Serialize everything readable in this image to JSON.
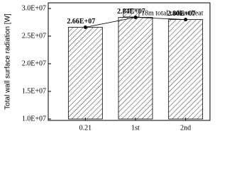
{
  "chart_data": {
    "type": "bar",
    "ylabel": "Total wall surface radiation [W]",
    "categories": [
      "0.21",
      "1st",
      "2nd"
    ],
    "series": [
      {
        "name": "18m total radiant heat",
        "color": "#000000",
        "values": [
          26600000,
          28400000,
          28000000
        ],
        "value_labels": [
          "2.66E+07",
          "2.84E+07",
          "2.80E+07"
        ]
      }
    ],
    "ylim": [
      10000000,
      30000000
    ],
    "yticks": [
      {
        "value": 10000000,
        "label": "1.0E+07"
      },
      {
        "value": 15000000,
        "label": "1.5E+07"
      },
      {
        "value": 20000000,
        "label": "2.0E+07"
      },
      {
        "value": 25000000,
        "label": "2.5E+07"
      },
      {
        "value": 30000000,
        "label": "3.0E+07"
      }
    ],
    "legend": "upper right",
    "connect_tops": true
  }
}
